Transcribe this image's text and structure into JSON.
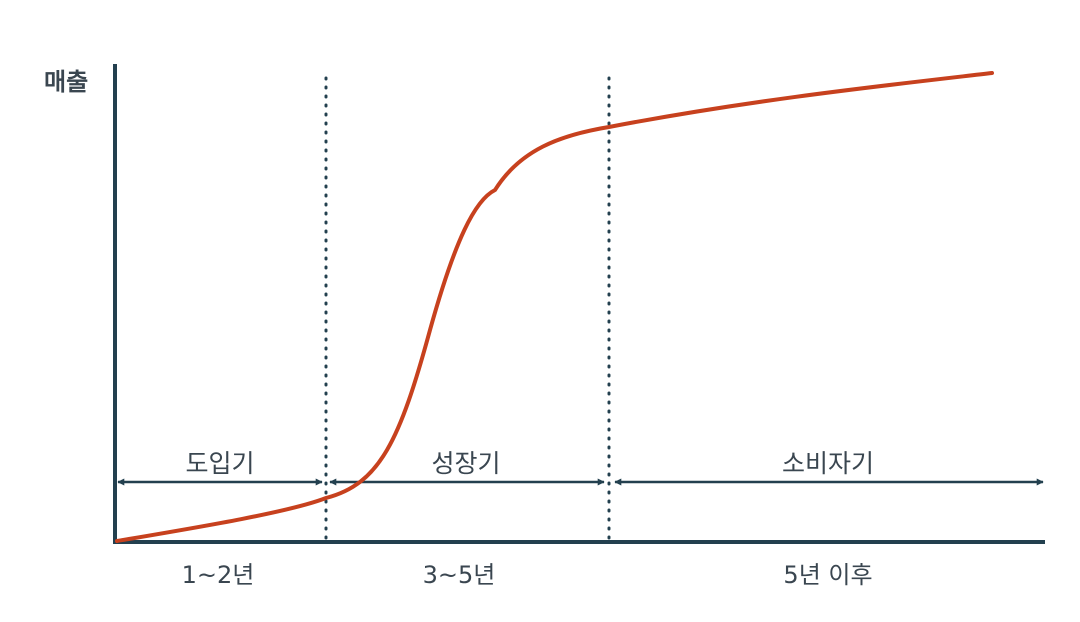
{
  "axis": {
    "y_label": "매출"
  },
  "phases": [
    {
      "name": "도입기",
      "period": "1~2년"
    },
    {
      "name": "성장기",
      "period": "3~5년"
    },
    {
      "name": "소비자기",
      "period": "5년 이후"
    }
  ],
  "colors": {
    "curve": "#c7411e",
    "axis": "#23404f",
    "text": "#3a4650"
  }
}
